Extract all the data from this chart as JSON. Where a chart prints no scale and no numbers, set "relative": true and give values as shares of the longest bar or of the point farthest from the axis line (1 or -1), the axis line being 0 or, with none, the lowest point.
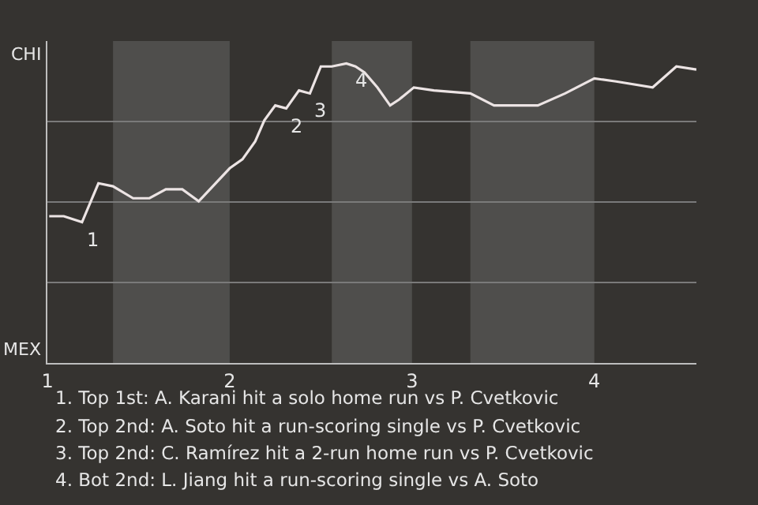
{
  "chart_data": {
    "type": "line",
    "relative": true,
    "x": [
      1.01,
      1.09,
      1.19,
      1.28,
      1.36,
      1.47,
      1.56,
      1.65,
      1.74,
      1.83,
      2.0,
      2.07,
      2.14,
      2.19,
      2.25,
      2.31,
      2.38,
      2.44,
      2.5,
      2.56,
      2.64,
      2.69,
      2.74,
      2.81,
      2.88,
      2.93,
      3.01,
      3.12,
      3.32,
      3.45,
      3.69,
      3.84,
      4.0,
      4.12,
      4.32,
      4.45,
      4.56
    ],
    "series": [
      {
        "color": "#ece4e4",
        "values": [
          0.49,
          0.49,
          0.47,
          0.6,
          0.59,
          0.55,
          0.55,
          0.58,
          0.58,
          0.54,
          0.65,
          0.68,
          0.74,
          0.81,
          0.86,
          0.85,
          0.91,
          0.9,
          0.99,
          0.99,
          1,
          0.99,
          0.97,
          0.92,
          0.86,
          0.88,
          0.92,
          0.91,
          0.9,
          0.86,
          0.86,
          0.9,
          0.95,
          0.94,
          0.92,
          0.99,
          0.98
        ]
      }
    ],
    "xlim": [
      1,
      4.56
    ],
    "xticks": [
      1,
      2,
      3,
      4
    ],
    "grid": "y",
    "marker": "none",
    "line_style": "solid",
    "bands": [
      {
        "axis": "x",
        "from": 1.36,
        "to": 2.0,
        "color": "#4f4e4c"
      },
      {
        "axis": "x",
        "from": 2.56,
        "to": 3.0,
        "color": "#4f4e4c"
      },
      {
        "axis": "x",
        "from": 3.32,
        "to": 4.0,
        "color": "#4f4e4c"
      }
    ],
    "annotations": [
      {
        "text": "1",
        "x": 1.19,
        "y": 0.47
      },
      {
        "text": "2",
        "x": 2.31,
        "y": 0.85
      },
      {
        "text": "3",
        "x": 2.44,
        "y": 0.9
      },
      {
        "text": "4",
        "x": 2.81,
        "y": 0.92
      },
      "CHI",
      "MEX",
      "1. Top 1st: A. Karani hit a solo home run vs P. Cvetkovic",
      "2. Top 2nd: A. Soto hit a run-scoring single vs P. Cvetkovic",
      "3. Top 2nd: C. Ramírez hit a 2-run home run vs P. Cvetkovic",
      "4. Bot 2nd: L. Jiang hit a run-scoring single vs A. Soto"
    ]
  }
}
